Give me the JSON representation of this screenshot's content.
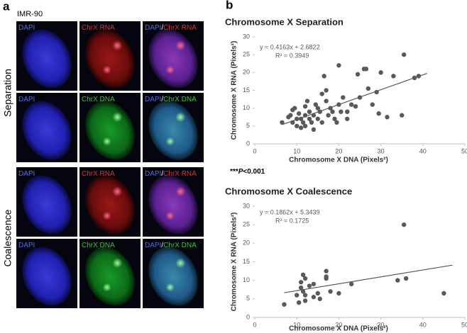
{
  "panel_a": {
    "label": "a",
    "cell_line": "IMR-90",
    "groups": [
      {
        "name": "Separation"
      },
      {
        "name": "Coalescence"
      }
    ],
    "channel_labels": {
      "dapi": "DAPI",
      "rna": "ChrX RNA",
      "dna": "ChrX DNA",
      "separator": "/"
    }
  },
  "panel_b": {
    "label": "b",
    "significance_prefix": "***",
    "significance_symbol": "P",
    "significance_value": "<0.001"
  },
  "chart_data": [
    {
      "type": "scatter",
      "title": "Chromosome X Separation",
      "x_label": "Chromosome X DNA (Pixels²)",
      "y_label": "Chromosome X RNA (Pixels²)",
      "equation": "y = 0.4163x + 2.6822",
      "r_squared": "R² = 0.3949",
      "color": "#595959",
      "trendline_color": "#595959",
      "x": [
        6.5,
        8,
        8.5,
        9,
        9.5,
        9,
        10,
        10,
        10.5,
        11,
        11,
        11.5,
        12,
        12,
        12,
        12.5,
        13,
        13,
        13.5,
        14,
        14,
        14.5,
        15,
        15,
        15.5,
        16,
        16,
        16.5,
        17,
        17,
        17.5,
        18,
        18.5,
        19,
        19.5,
        20,
        20,
        20.5,
        21,
        22,
        22,
        23,
        24,
        24.5,
        25,
        26,
        26.5,
        27,
        28,
        29,
        29.5,
        30,
        31.5,
        33,
        35,
        35.5,
        38,
        39
      ],
      "values": [
        6,
        7.5,
        8,
        9.5,
        10,
        6,
        7,
        5,
        8.5,
        7,
        4.5,
        6,
        5,
        8,
        10.5,
        12,
        7,
        9,
        6,
        8,
        4,
        11,
        7,
        10,
        9,
        14,
        6,
        19,
        12,
        15,
        8,
        10,
        9,
        7,
        6,
        22,
        11,
        9,
        13,
        7,
        9,
        11,
        10.5,
        19.5,
        13,
        21,
        21,
        15.5,
        11,
        14.5,
        8.5,
        20,
        7.5,
        19,
        8,
        25,
        18.5,
        19
      ],
      "xlim": [
        0,
        50
      ],
      "xticks": [
        0,
        10,
        20,
        30,
        40,
        50
      ],
      "ylim": [
        0,
        30
      ],
      "yticks": [
        0,
        5,
        10,
        15,
        20,
        25,
        30
      ]
    },
    {
      "type": "scatter",
      "title": "Chromosome X Coalescence",
      "x_label": "Chromosome X DNA (Pixels²)",
      "y_label": "Chromosome X RNA (Pixels²)",
      "equation": "y = 0.1862x + 5.3439",
      "r_squared": "R² = 0.1725",
      "color": "#595959",
      "trendline_color": "#595959",
      "x": [
        7,
        10,
        10.5,
        11,
        11,
        11.5,
        11.5,
        12,
        12,
        12,
        13,
        14,
        14,
        15,
        15.5,
        17,
        17,
        17,
        18,
        20,
        23,
        34,
        35.5,
        36,
        45
      ],
      "values": [
        3.5,
        6,
        4,
        8,
        9.5,
        11.5,
        7,
        10.5,
        6,
        4.5,
        8.5,
        9,
        5.5,
        6.5,
        5,
        12.5,
        11,
        10.5,
        7,
        6.5,
        9,
        10,
        25,
        10.5,
        6.5
      ],
      "xlim": [
        0,
        50
      ],
      "xticks": [
        0,
        10,
        20,
        30,
        40,
        50
      ],
      "ylim": [
        0,
        30
      ],
      "yticks": [
        0,
        5,
        10,
        15,
        20,
        25,
        30
      ]
    }
  ]
}
